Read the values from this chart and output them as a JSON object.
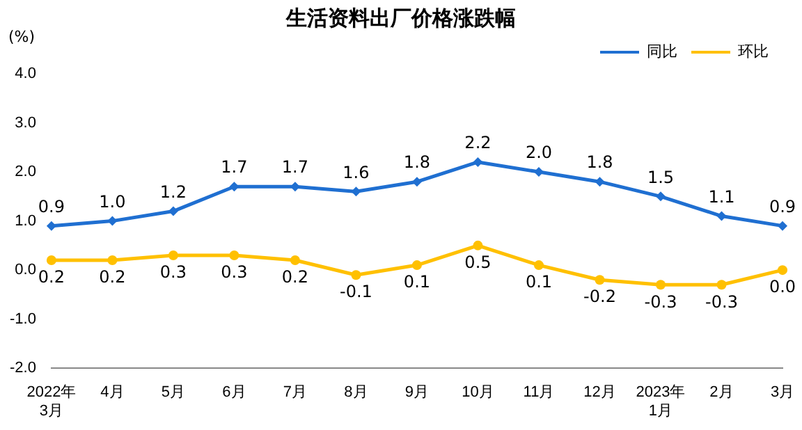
{
  "chart_data": {
    "type": "line",
    "title": "生活资料出厂价格涨跌幅",
    "ylabel": "(%)",
    "categories": [
      "2022年\n3月",
      "4月",
      "5月",
      "6月",
      "7月",
      "8月",
      "9月",
      "10月",
      "11月",
      "12月",
      "2023年\n1月",
      "2月",
      "3月"
    ],
    "series": [
      {
        "name": "同比",
        "color": "#1f6fd1",
        "marker": "diamond",
        "values": [
          0.9,
          1.0,
          1.2,
          1.7,
          1.7,
          1.6,
          1.8,
          2.2,
          2.0,
          1.8,
          1.5,
          1.1,
          0.9
        ],
        "value_labels": [
          "0.9",
          "1.0",
          "1.2",
          "1.7",
          "1.7",
          "1.6",
          "1.8",
          "2.2",
          "2.0",
          "1.8",
          "1.5",
          "1.1",
          "0.9"
        ]
      },
      {
        "name": "环比",
        "color": "#ffc000",
        "marker": "circle",
        "values": [
          0.2,
          0.2,
          0.3,
          0.3,
          0.2,
          -0.1,
          0.1,
          0.5,
          0.1,
          -0.2,
          -0.3,
          -0.3,
          0.0
        ],
        "value_labels": [
          "0.2",
          "0.2",
          "0.3",
          "0.3",
          "0.2",
          "-0.1",
          "0.1",
          "0.5",
          "0.1",
          "-0.2",
          "-0.3",
          "-0.3",
          "0.0"
        ]
      }
    ],
    "ylim": [
      -2,
      4
    ],
    "yticks": [
      {
        "value": -2,
        "label": "-2.0"
      },
      {
        "value": -1,
        "label": "-1.0"
      },
      {
        "value": 0,
        "label": "0.0"
      },
      {
        "value": 1,
        "label": "1.0"
      },
      {
        "value": 2,
        "label": "2.0"
      },
      {
        "value": 3,
        "label": "3.0"
      },
      {
        "value": 4,
        "label": "4.0"
      }
    ],
    "grid": false,
    "legend": "top right"
  }
}
